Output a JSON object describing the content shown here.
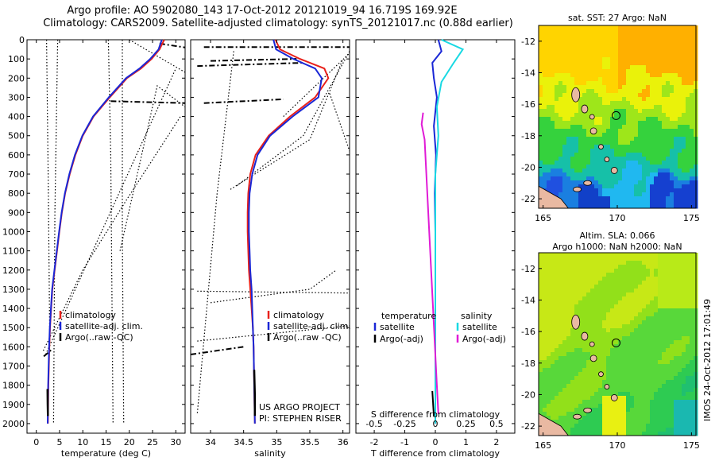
{
  "header": {
    "title_line1": "Argo profile: AO 5902080_143 17-Oct-2012 20121019_94 16.719S 169.92E",
    "title_line2": "Climatology: CARS2009. Satellite-adjusted climatology: synTS_20121017.nc (0.88d earlier)"
  },
  "colors": {
    "climatology": "#e8211b",
    "satellite": "#1a27d6",
    "argo": "#000000",
    "salinity_satellite": "#19d9e3",
    "salinity_argo": "#e01bd6",
    "land": "#e9b9a2"
  },
  "chart_data": [
    {
      "type": "line",
      "panel": "temperature",
      "xlabel": "temperature (deg C)",
      "ylabel": "",
      "xlim": [
        -2,
        32
      ],
      "ylim": [
        2050,
        0
      ],
      "xticks": [
        "0",
        "5",
        "10",
        "15",
        "20",
        "25",
        "30"
      ],
      "xtick_values": [
        0,
        5,
        10,
        15,
        20,
        25,
        30
      ],
      "yticks": [
        "0",
        "100",
        "200",
        "300",
        "400",
        "500",
        "600",
        "700",
        "800",
        "900",
        "1000",
        "1100",
        "1200",
        "1300",
        "1400",
        "1500",
        "1600",
        "1700",
        "1800",
        "1900",
        "2000"
      ],
      "ytick_values": [
        0,
        100,
        200,
        300,
        400,
        500,
        600,
        700,
        800,
        900,
        1000,
        1100,
        1200,
        1300,
        1400,
        1500,
        1600,
        1700,
        1800,
        1900,
        2000
      ],
      "legend": [
        "climatology",
        "satellite-adj. clim.",
        "Argo(..raw -QC)"
      ],
      "series": [
        {
          "name": "climatology",
          "color": "#e8211b",
          "x": [
            27.5,
            26.5,
            24.8,
            22.5,
            19.5,
            15.8,
            12.3,
            10.0,
            8.4,
            7.2,
            6.2,
            5.5,
            4.95,
            4.45,
            3.95,
            3.45,
            3.2,
            2.95,
            2.8,
            2.6,
            2.5
          ],
          "y": [
            0,
            50,
            100,
            150,
            200,
            300,
            400,
            500,
            600,
            700,
            800,
            900,
            1000,
            1100,
            1200,
            1300,
            1400,
            1500,
            1600,
            1800,
            2000
          ]
        },
        {
          "name": "satellite-adj. clim.",
          "color": "#1a27d6",
          "x": [
            27.0,
            26.3,
            24.5,
            22.2,
            19.3,
            15.6,
            12.2,
            9.9,
            8.3,
            7.1,
            6.15,
            5.45,
            4.9,
            4.4,
            3.9,
            3.4,
            3.15,
            2.9,
            2.75,
            2.55,
            2.45
          ],
          "y": [
            0,
            50,
            100,
            150,
            200,
            300,
            400,
            500,
            600,
            700,
            800,
            900,
            1000,
            1100,
            1200,
            1300,
            1400,
            1500,
            1600,
            1800,
            2000
          ]
        },
        {
          "name": "Argo(..raw -QC)",
          "color": "#000000",
          "x": [
            2.4,
            2.45,
            2.5
          ],
          "y": [
            1820,
            1900,
            1960
          ]
        }
      ]
    },
    {
      "type": "line",
      "panel": "salinity",
      "xlabel": "salinity",
      "ylabel": "",
      "xlim": [
        33.7,
        36.1
      ],
      "ylim": [
        2050,
        0
      ],
      "xticks": [
        "34",
        "34.5",
        "35",
        "35.5",
        "36"
      ],
      "xtick_values": [
        34,
        34.5,
        35,
        35.5,
        36
      ],
      "legend": [
        "climatology",
        "satellite-adj. clim.",
        "Argo(..raw -QC)"
      ],
      "annotation": [
        "US ARGO PROJECT",
        "PI: STEPHEN RISER"
      ],
      "series": [
        {
          "name": "climatology",
          "color": "#e8211b",
          "x": [
            34.98,
            35.05,
            35.35,
            35.72,
            35.78,
            35.58,
            35.2,
            34.88,
            34.68,
            34.6,
            34.57,
            34.56,
            34.56,
            34.57,
            34.58,
            34.6,
            34.62,
            34.64,
            34.65,
            34.66,
            34.67
          ],
          "y": [
            0,
            50,
            100,
            150,
            200,
            300,
            400,
            500,
            600,
            700,
            800,
            900,
            1000,
            1100,
            1200,
            1300,
            1400,
            1500,
            1600,
            1800,
            2000
          ]
        },
        {
          "name": "satellite-adj. clim.",
          "color": "#1a27d6",
          "x": [
            34.95,
            34.99,
            35.25,
            35.58,
            35.68,
            35.63,
            35.24,
            34.9,
            34.71,
            34.63,
            34.59,
            34.58,
            34.58,
            34.59,
            34.6,
            34.62,
            34.63,
            34.64,
            34.65,
            34.66,
            34.67
          ],
          "y": [
            0,
            50,
            100,
            150,
            200,
            300,
            400,
            500,
            600,
            700,
            800,
            900,
            1000,
            1100,
            1200,
            1300,
            1400,
            1500,
            1600,
            1800,
            2000
          ]
        },
        {
          "name": "Argo(..raw -QC)",
          "color": "#000000",
          "x": [
            34.66,
            34.67,
            34.67
          ],
          "y": [
            1720,
            1850,
            1960
          ]
        }
      ]
    },
    {
      "type": "line",
      "panel": "difference",
      "xlabel": "T difference from climatology",
      "xlabel_top": "S difference from climatology",
      "xlim": [
        -2.6,
        2.6
      ],
      "ylim": [
        2050,
        0
      ],
      "xticks": [
        "-2",
        "-1",
        "0",
        "1",
        "2"
      ],
      "xtick_values": [
        -2,
        -1,
        0,
        1,
        2
      ],
      "sticks": [
        "-0.5",
        "-0.25",
        "0",
        "0.25",
        "0.5"
      ],
      "stick_values": [
        -0.5,
        -0.25,
        0,
        0.25,
        0.5
      ],
      "legend_headers": [
        "temperature",
        "salinity"
      ],
      "legend": [
        "satellite",
        "Argo(-adj)",
        "satellite",
        "Argo(-adj)"
      ],
      "series": [
        {
          "name": "satellite",
          "quantity": "temperature",
          "color": "#1a27d6",
          "x": [
            0.1,
            0.2,
            -0.1,
            -0.05,
            0.05,
            -0.05,
            0.02,
            -0.02,
            0.0,
            0.0,
            0.0,
            0.0
          ],
          "y": [
            0,
            60,
            120,
            200,
            300,
            450,
            600,
            800,
            1000,
            1300,
            1600,
            2000
          ]
        },
        {
          "name": "satellite",
          "quantity": "salinity",
          "color": "#19d9e3",
          "x": [
            0.2,
            0.9,
            0.6,
            0.2,
            0.05,
            0.1,
            0.0,
            0.0,
            0.0,
            0.0,
            0.0
          ],
          "y": [
            0,
            50,
            120,
            220,
            350,
            500,
            700,
            900,
            1200,
            1600,
            2000
          ]
        },
        {
          "name": "Argo(-adj)",
          "quantity": "temperature",
          "color": "#000000",
          "x": [
            -0.1,
            -0.05
          ],
          "y": [
            1830,
            1960
          ]
        },
        {
          "name": "Argo(-adj)",
          "quantity": "salinity",
          "color": "#e01bd6",
          "x": [
            -0.4,
            -0.45,
            -0.35,
            0.05,
            0.1
          ],
          "y": [
            380,
            440,
            520,
            1800,
            1950
          ]
        }
      ]
    },
    {
      "type": "heatmap",
      "panel": "sst_map",
      "title": "sat. SST: 27 Argo: NaN",
      "xlim": [
        164.7,
        175.3
      ],
      "ylim": [
        -22.6,
        -11
      ],
      "xticks": [
        "165",
        "170",
        "175"
      ],
      "xtick_values": [
        165,
        170,
        175
      ],
      "yticks": [
        "-12",
        "-14",
        "-16",
        "-18",
        "-20",
        "-22"
      ],
      "ytick_values": [
        -12,
        -14,
        -16,
        -18,
        -20,
        -22
      ],
      "marker": {
        "lon": 169.92,
        "lat": -16.72
      }
    },
    {
      "type": "heatmap",
      "panel": "sla_map",
      "title": "Altim. SLA: 0.066",
      "subtitle": "Argo h1000: NaN h2000: NaN",
      "xlim": [
        164.7,
        175.3
      ],
      "ylim": [
        -22.6,
        -11
      ],
      "xticks": [
        "165",
        "170",
        "175"
      ],
      "xtick_values": [
        165,
        170,
        175
      ],
      "yticks": [
        "-12",
        "-14",
        "-16",
        "-18",
        "-20",
        "-22"
      ],
      "ytick_values": [
        -12,
        -14,
        -16,
        -18,
        -20,
        -22
      ],
      "marker": {
        "lon": 169.92,
        "lat": -16.72
      }
    }
  ],
  "footer": {
    "stamp": "IMOS 24-Oct-2012 17:01:49"
  }
}
